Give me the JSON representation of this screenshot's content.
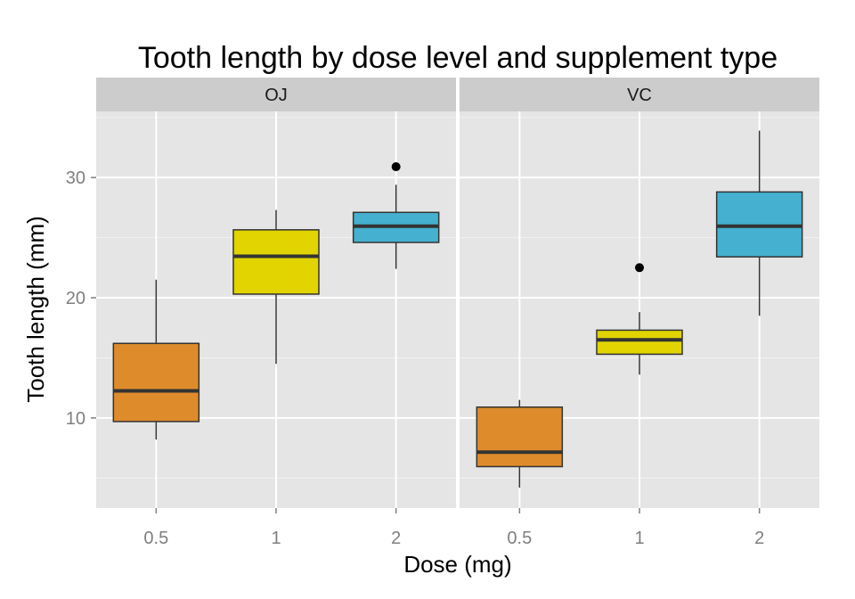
{
  "chart_data": {
    "type": "boxplot",
    "title": "Tooth length by dose level and supplement type",
    "xlabel": "Dose (mg)",
    "ylabel": "Tooth length (mm)",
    "categories": [
      "0.5",
      "1",
      "2"
    ],
    "ylim": [
      2.5,
      35.5
    ],
    "yticks": [
      10,
      20,
      30
    ],
    "grid": true,
    "legend": "none",
    "colors": {
      "0.5": "#de8c2b",
      "1": "#e1d400",
      "2": "#45b0cf"
    },
    "panel_background": "#e5e5e5",
    "strip_background": "#cccccc",
    "panels": [
      {
        "label": "OJ",
        "boxes": [
          {
            "dose": "0.5",
            "min": 8.2,
            "q1": 9.7,
            "median": 12.25,
            "q3": 16.2,
            "max": 21.5,
            "outliers": []
          },
          {
            "dose": "1",
            "min": 14.5,
            "q1": 20.3,
            "median": 23.45,
            "q3": 25.65,
            "max": 27.3,
            "outliers": []
          },
          {
            "dose": "2",
            "min": 22.4,
            "q1": 24.6,
            "median": 25.95,
            "q3": 27.1,
            "max": 29.4,
            "outliers": [
              30.9
            ]
          }
        ]
      },
      {
        "label": "VC",
        "boxes": [
          {
            "dose": "0.5",
            "min": 4.2,
            "q1": 5.95,
            "median": 7.15,
            "q3": 10.9,
            "max": 11.5,
            "outliers": []
          },
          {
            "dose": "1",
            "min": 13.6,
            "q1": 15.3,
            "median": 16.5,
            "q3": 17.3,
            "max": 18.8,
            "outliers": [
              22.5
            ]
          },
          {
            "dose": "2",
            "min": 18.5,
            "q1": 23.4,
            "median": 25.95,
            "q3": 28.8,
            "max": 33.9,
            "outliers": []
          }
        ]
      }
    ]
  }
}
